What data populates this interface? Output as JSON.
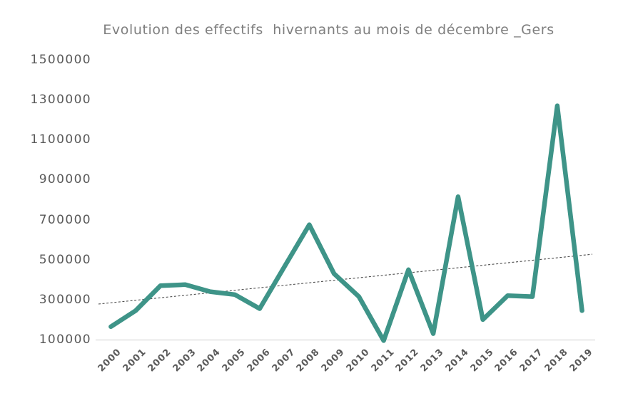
{
  "chart_data": {
    "type": "line",
    "title": "Evolution des effectifs  hivernants au mois de décembre _Gers",
    "categories": [
      "2000",
      "2001",
      "2002",
      "2003",
      "2004",
      "2005",
      "2006",
      "2007",
      "2008",
      "2009",
      "2010",
      "2011",
      "2012",
      "2013",
      "2014",
      "2015",
      "2016",
      "2017",
      "2018",
      "2019"
    ],
    "values": [
      165000,
      245000,
      370000,
      375000,
      340000,
      325000,
      255000,
      465000,
      675000,
      430000,
      315000,
      95000,
      450000,
      130000,
      815000,
      200000,
      320000,
      315000,
      1270000,
      245000
    ],
    "ylim": [
      100000,
      1500000
    ],
    "yticks": [
      100000,
      300000,
      500000,
      700000,
      900000,
      1100000,
      1300000,
      1500000
    ],
    "xlabel": "",
    "ylabel": "",
    "grid": false,
    "legend": false,
    "trendline": {
      "type": "linear",
      "style": "dashed",
      "start_value": 278000,
      "end_value": 527000
    },
    "colors": {
      "line": "#3E9488",
      "trendline": "#4D4D4D",
      "axis_line": "#D9D9D9",
      "tick_label": "#595959",
      "title": "#7F7F7F"
    }
  }
}
